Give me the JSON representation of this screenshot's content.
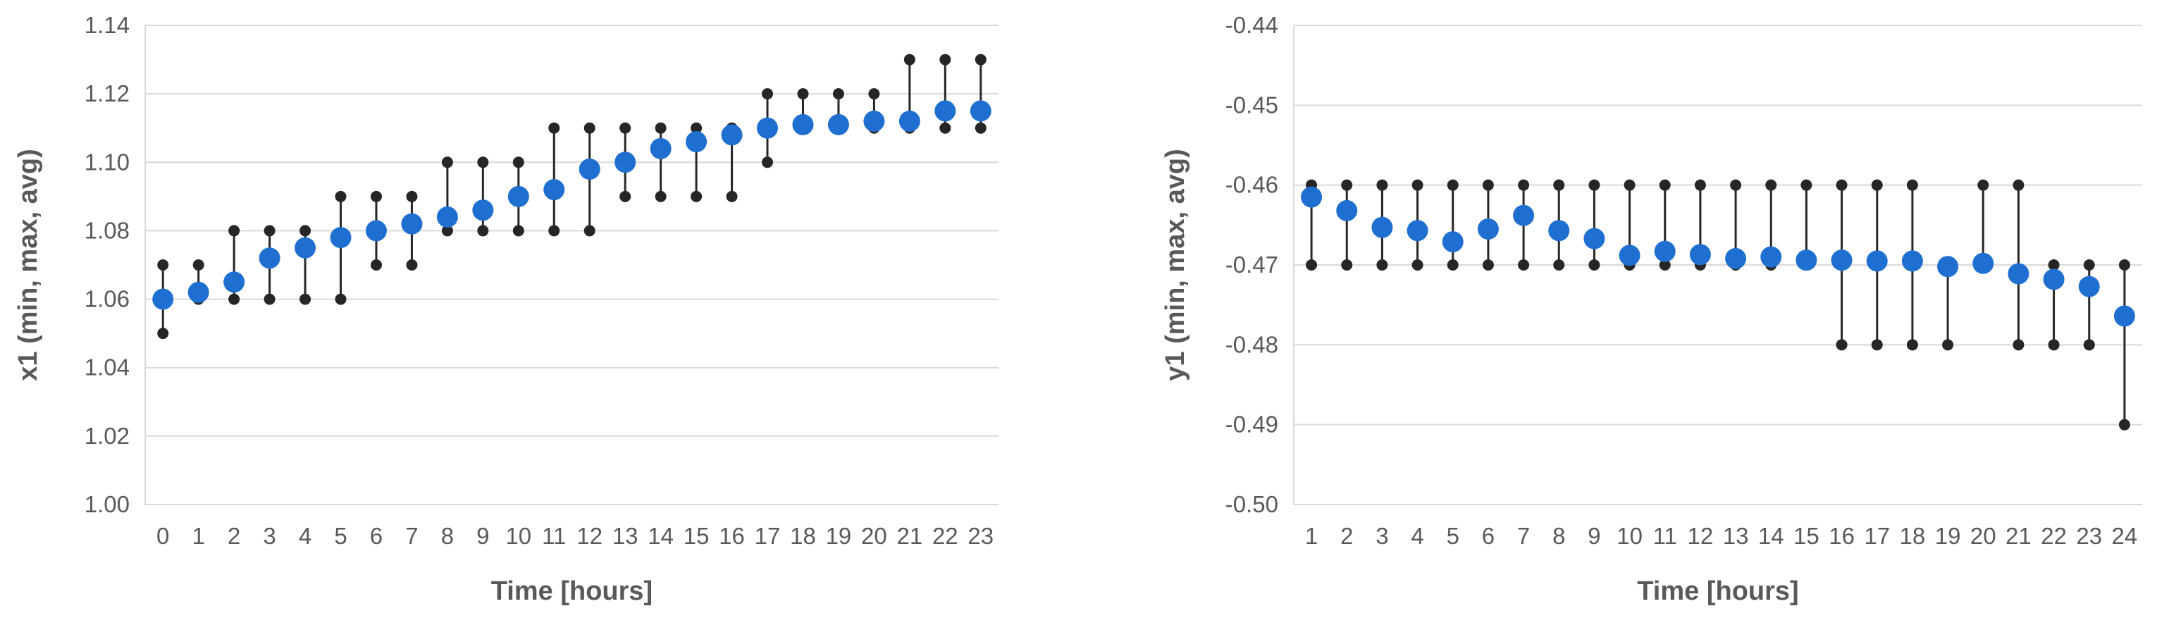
{
  "chart_data": [
    {
      "type": "scatter",
      "xlabel": "Time [hours]",
      "ylabel": "x1 (min, max, avg)",
      "ylim": [
        1.0,
        1.14
      ],
      "yticks": [
        1.0,
        1.02,
        1.04,
        1.06,
        1.08,
        1.1,
        1.12,
        1.14
      ],
      "ytick_labels": [
        "1.00",
        "1.02",
        "1.04",
        "1.06",
        "1.08",
        "1.10",
        "1.12",
        "1.14"
      ],
      "grid": true,
      "x": [
        0,
        1,
        2,
        3,
        4,
        5,
        6,
        7,
        8,
        9,
        10,
        11,
        12,
        13,
        14,
        15,
        16,
        17,
        18,
        19,
        20,
        21,
        22,
        23
      ],
      "x_labels": [
        "0",
        "1",
        "2",
        "3",
        "4",
        "5",
        "6",
        "7",
        "8",
        "9",
        "10",
        "11",
        "12",
        "13",
        "14",
        "15",
        "16",
        "17",
        "18",
        "19",
        "20",
        "21",
        "22",
        "23"
      ],
      "min": [
        1.05,
        1.06,
        1.06,
        1.06,
        1.06,
        1.06,
        1.07,
        1.07,
        1.08,
        1.08,
        1.08,
        1.08,
        1.08,
        1.09,
        1.09,
        1.09,
        1.09,
        1.1,
        1.11,
        1.11,
        1.11,
        1.11,
        1.11,
        1.11
      ],
      "max": [
        1.07,
        1.07,
        1.08,
        1.08,
        1.08,
        1.09,
        1.09,
        1.09,
        1.1,
        1.1,
        1.1,
        1.11,
        1.11,
        1.11,
        1.11,
        1.11,
        1.11,
        1.12,
        1.12,
        1.12,
        1.12,
        1.13,
        1.13,
        1.13
      ],
      "avg": [
        1.06,
        1.062,
        1.065,
        1.072,
        1.075,
        1.078,
        1.08,
        1.082,
        1.084,
        1.086,
        1.09,
        1.092,
        1.098,
        1.1,
        1.104,
        1.106,
        1.108,
        1.11,
        1.111,
        1.111,
        1.112,
        1.112,
        1.115,
        1.115
      ],
      "colors": {
        "avg": "#1f6fd1",
        "minmax": "#262626",
        "grid": "#d9d9d9",
        "text": "#595959"
      }
    },
    {
      "type": "scatter",
      "xlabel": "Time [hours]",
      "ylabel": "y1 (min, max, avg)",
      "ylim": [
        -0.5,
        -0.44
      ],
      "yticks": [
        -0.5,
        -0.49,
        -0.48,
        -0.47,
        -0.46,
        -0.45,
        -0.44
      ],
      "ytick_labels": [
        "-0.50",
        "-0.49",
        "-0.48",
        "-0.47",
        "-0.46",
        "-0.45",
        "-0.44"
      ],
      "grid": true,
      "x": [
        1,
        2,
        3,
        4,
        5,
        6,
        7,
        8,
        9,
        10,
        11,
        12,
        13,
        14,
        15,
        16,
        17,
        18,
        19,
        20,
        21,
        22,
        23,
        24
      ],
      "x_labels": [
        "1",
        "2",
        "3",
        "4",
        "5",
        "6",
        "7",
        "8",
        "9",
        "10",
        "11",
        "12",
        "13",
        "14",
        "15",
        "16",
        "17",
        "18",
        "19",
        "20",
        "21",
        "22",
        "23",
        "24"
      ],
      "min": [
        -0.47,
        -0.47,
        -0.47,
        -0.47,
        -0.47,
        -0.47,
        -0.47,
        -0.47,
        -0.47,
        -0.47,
        -0.47,
        -0.47,
        -0.47,
        -0.47,
        -0.47,
        -0.48,
        -0.48,
        -0.48,
        -0.48,
        -0.47,
        -0.48,
        -0.48,
        -0.48,
        -0.49
      ],
      "max": [
        -0.46,
        -0.46,
        -0.46,
        -0.46,
        -0.46,
        -0.46,
        -0.46,
        -0.46,
        -0.46,
        -0.46,
        -0.46,
        -0.46,
        -0.46,
        -0.46,
        -0.46,
        -0.46,
        -0.46,
        -0.46,
        -0.47,
        -0.46,
        -0.46,
        -0.47,
        -0.47,
        -0.47
      ],
      "avg": [
        -0.4615,
        -0.4632,
        -0.4653,
        -0.4657,
        -0.4671,
        -0.4655,
        -0.4638,
        -0.4657,
        -0.4667,
        -0.4688,
        -0.4683,
        -0.4687,
        -0.4692,
        -0.469,
        -0.4694,
        -0.4694,
        -0.4695,
        -0.4695,
        -0.4702,
        -0.4698,
        -0.4711,
        -0.4718,
        -0.4727,
        -0.4764
      ],
      "colors": {
        "avg": "#1f6fd1",
        "minmax": "#262626",
        "grid": "#d9d9d9",
        "text": "#595959"
      }
    }
  ]
}
